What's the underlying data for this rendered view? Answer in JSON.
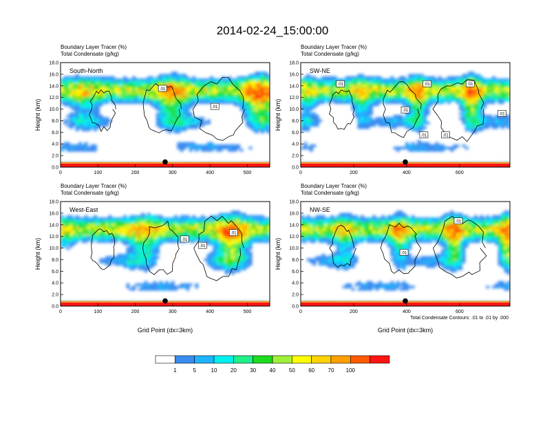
{
  "figure": {
    "title": "2014-02-24_15:00:00",
    "footnote": "Total Condensate Contours: .01 to .01 by .000"
  },
  "colorbar": {
    "labels": [
      "1",
      "5",
      "10",
      "20",
      "30",
      "40",
      "50",
      "60",
      "70",
      "100"
    ],
    "colors": [
      "#ffffff",
      "#3a8cf0",
      "#1eb3ff",
      "#00f0f0",
      "#1ef08c",
      "#1edc1e",
      "#a0f03a",
      "#ffff00",
      "#ffd200",
      "#ffa000",
      "#ff5a00",
      "#ff1414"
    ]
  },
  "chart_data": [
    {
      "type": "heatmap",
      "title_line1": "Boundary Layer Tracer   (%)",
      "title_line2": "Total Condensate   (g/kg)",
      "panel_label": "South-North",
      "ylabel": "Height (km)",
      "xlabel": "",
      "xlim": [
        0,
        560
      ],
      "ylim": [
        0,
        18
      ],
      "xticks": [
        0,
        100,
        200,
        300,
        400,
        500
      ],
      "yticks": [
        0,
        2,
        4,
        6,
        8,
        10,
        12,
        14,
        16,
        18
      ],
      "ytick_labels": [
        "0.0",
        "2.0",
        "4.0",
        "6.0",
        "8.0",
        "10.0",
        "12.0",
        "14.0",
        "16.0",
        "18.0"
      ],
      "marker_x": 280,
      "contour_labels": [
        {
          "x": 273,
          "y": 13.5,
          "text": ".01"
        },
        {
          "x": 413,
          "y": 10.4,
          "text": ".01"
        }
      ]
    },
    {
      "type": "heatmap",
      "title_line1": "Boundary Layer Tracer   (%)",
      "title_line2": "Total Condensate   (g/kg)",
      "panel_label": "SW-NE",
      "ylabel": "Height (km)",
      "xlabel": "",
      "xlim": [
        0,
        790
      ],
      "ylim": [
        0,
        18
      ],
      "xticks": [
        0,
        200,
        400,
        600
      ],
      "yticks": [
        0,
        2,
        4,
        6,
        8,
        10,
        12,
        14,
        16,
        18
      ],
      "ytick_labels": [
        "0.0",
        "2.0",
        "4.0",
        "6.0",
        "8.0",
        "10.0",
        "12.0",
        "14.0",
        "16.0",
        "18.0"
      ],
      "marker_x": 395,
      "contour_labels": [
        {
          "x": 150,
          "y": 14.3,
          "text": ".01"
        },
        {
          "x": 477,
          "y": 14.3,
          "text": ".01"
        },
        {
          "x": 640,
          "y": 14.3,
          "text": ".01"
        },
        {
          "x": 395,
          "y": 9.8,
          "text": ".01"
        },
        {
          "x": 465,
          "y": 5.5,
          "text": ".01"
        },
        {
          "x": 547,
          "y": 5.5,
          "text": ".01"
        },
        {
          "x": 760,
          "y": 9.2,
          "text": ".01"
        }
      ]
    },
    {
      "type": "heatmap",
      "title_line1": "Boundary Layer Tracer   (%)",
      "title_line2": "Total Condensate   (g/kg)",
      "panel_label": "West-East",
      "ylabel": "Height (km)",
      "xlabel": "Grid Point (dx=3km)",
      "xlim": [
        0,
        560
      ],
      "ylim": [
        0,
        18
      ],
      "xticks": [
        0,
        100,
        200,
        300,
        400,
        500
      ],
      "yticks": [
        0,
        2,
        4,
        6,
        8,
        10,
        12,
        14,
        16,
        18
      ],
      "ytick_labels": [
        "0.0",
        "2.0",
        "4.0",
        "6.0",
        "8.0",
        "10.0",
        "12.0",
        "14.0",
        "16.0",
        "18.0"
      ],
      "marker_x": 280,
      "contour_labels": [
        {
          "x": 463,
          "y": 12.6,
          "text": ".01"
        },
        {
          "x": 332,
          "y": 11.5,
          "text": ".01"
        },
        {
          "x": 380,
          "y": 10.4,
          "text": ".01"
        }
      ]
    },
    {
      "type": "heatmap",
      "title_line1": "Boundary Layer Tracer   (%)",
      "title_line2": "Total Condensate   (g/kg)",
      "panel_label": "NW-SE",
      "ylabel": "Height (km)",
      "xlabel": "Grid Point (dx=3km)",
      "xlim": [
        0,
        790
      ],
      "ylim": [
        0,
        18
      ],
      "xticks": [
        0,
        200,
        400,
        600
      ],
      "yticks": [
        0,
        2,
        4,
        6,
        8,
        10,
        12,
        14,
        16,
        18
      ],
      "ytick_labels": [
        "0.0",
        "2.0",
        "4.0",
        "6.0",
        "8.0",
        "10.0",
        "12.0",
        "14.0",
        "16.0",
        "18.0"
      ],
      "marker_x": 395,
      "contour_labels": [
        {
          "x": 595,
          "y": 14.6,
          "text": ".01"
        },
        {
          "x": 390,
          "y": 9.2,
          "text": ".01"
        }
      ]
    }
  ]
}
